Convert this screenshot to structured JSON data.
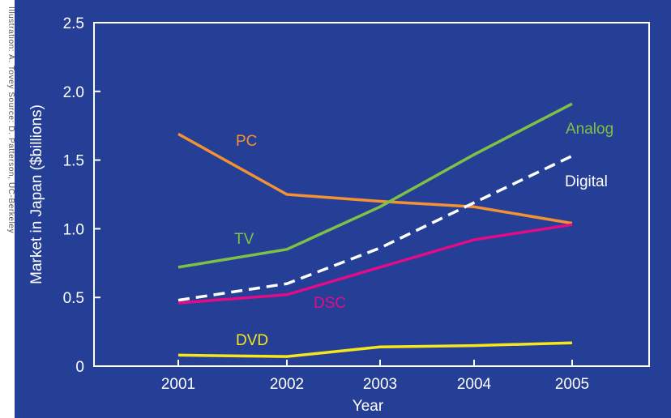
{
  "credit": "Illustration: A. Tovey   Source: D. Patterson, UC-Berkeley",
  "colors": {
    "background": "#253f97",
    "axis": "#ffffff",
    "pc": "#f39133",
    "analog": "#7dc145",
    "digital": "#ffffff",
    "dsc": "#e20c87",
    "dvd": "#f7e61a"
  },
  "chart_data": {
    "type": "line",
    "title": "",
    "xlabel": "Year",
    "ylabel": "Market in Japan ($billions)",
    "x": [
      "2001",
      "2002",
      "2003",
      "2004",
      "2005"
    ],
    "ylim": [
      0,
      2.5
    ],
    "ytick_labels": [
      "0",
      "0.5",
      "1.0",
      "1.5",
      "2.0",
      "2.5"
    ],
    "grid": false,
    "legend": "labels placed next to lines",
    "series": [
      {
        "name": "PC",
        "values": [
          1.69,
          1.25,
          1.2,
          1.16,
          1.04
        ],
        "style": "solid"
      },
      {
        "name": "Analog",
        "values": [
          0.72,
          0.85,
          1.16,
          1.54,
          1.91
        ],
        "style": "solid"
      },
      {
        "name": "Digital",
        "values": [
          0.48,
          0.6,
          0.86,
          1.19,
          1.53
        ],
        "style": "dashed"
      },
      {
        "name": "DSC",
        "values": [
          0.46,
          0.52,
          0.72,
          0.92,
          1.03
        ],
        "style": "solid"
      },
      {
        "name": "DVD",
        "values": [
          0.08,
          0.07,
          0.14,
          0.15,
          0.17
        ],
        "style": "solid"
      }
    ],
    "annotations": [
      "PC",
      "TV",
      "Analog",
      "Digital",
      "DSC",
      "DVD"
    ]
  }
}
